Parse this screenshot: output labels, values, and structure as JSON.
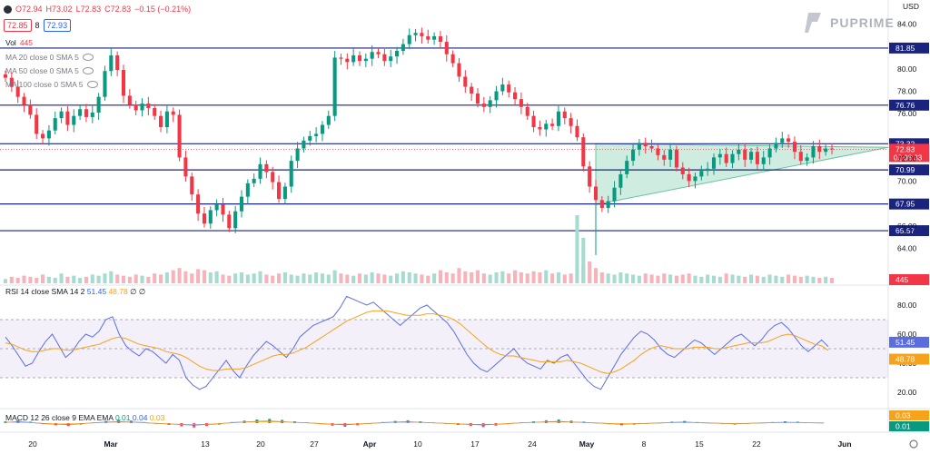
{
  "header": {
    "ohlc": {
      "o": "O72.94",
      "h": "H73.02",
      "l": "L72.83",
      "c": "C72.83",
      "change": "−0.15 (−0.21%)"
    },
    "bid": "72.85",
    "spread": "8",
    "ask": "72.93",
    "volume_label": "Vol",
    "volume_value": "445",
    "indicators": [
      "MA 20 close 0 SMA 5",
      "MA 50 close 0 SMA 5",
      "MA 100 close 0 SMA 5"
    ],
    "currency": "USD",
    "brand": "PUPRIME"
  },
  "rsi_label": {
    "name": "RSI 14 close SMA 14 2",
    "v1": "51.45",
    "v2": "48.78",
    "tail": "∅ ∅"
  },
  "macd_label": {
    "name": "MACD 12 26 close 9 EMA EMA",
    "v1": "0.01",
    "v2": "0.04",
    "v3": "0.03"
  },
  "colors": {
    "up": "#089981",
    "down": "#f23645",
    "level": "#1a237e",
    "rsi": "#5b6ee1",
    "rsi_ma": "#f7a21b",
    "tri": "#a8dcc8"
  },
  "chart_data": [
    {
      "type": "candlestick",
      "title": "",
      "x_tick_labels": [
        "20",
        "Mar",
        "13",
        "20",
        "27",
        "Apr",
        "10",
        "17",
        "24",
        "May",
        "8",
        "15",
        "22",
        "Jun"
      ],
      "y_tick_labels": [
        "84.00",
        "80.00",
        "78.00",
        "76.00",
        "72.00",
        "70.00",
        "66.00",
        "64.00"
      ],
      "ylim": [
        62.5,
        85
      ],
      "levels": [
        81.85,
        76.76,
        73.32,
        70.99,
        67.95,
        65.57
      ],
      "level_labels": [
        "81.85",
        "76.76",
        "73.32",
        "70.99",
        "67.95",
        "65.57"
      ],
      "last_price": "72.83",
      "countdown": "02:06:33",
      "close_path": [
        79.2,
        78.4,
        77.5,
        76.8,
        75.9,
        74.2,
        73.8,
        74.5,
        75.6,
        76.2,
        75.0,
        75.8,
        76.4,
        75.7,
        76.1,
        77.5,
        79.8,
        81.2,
        79.9,
        77.6,
        76.8,
        76.3,
        76.9,
        76.5,
        75.8,
        74.8,
        76.2,
        75.9,
        72.1,
        70.4,
        68.8,
        67.1,
        66.2,
        67.4,
        67.9,
        67.0,
        65.8,
        67.3,
        68.6,
        69.8,
        70.2,
        71.5,
        70.8,
        69.9,
        68.4,
        69.5,
        71.8,
        72.9,
        73.6,
        74.0,
        74.2,
        75.0,
        75.8,
        81.0,
        80.9,
        80.6,
        81.2,
        80.7,
        80.9,
        81.5,
        81.3,
        80.7,
        81.1,
        81.6,
        82.2,
        83.0,
        83.2,
        82.9,
        82.6,
        82.9,
        82.4,
        81.3,
        80.5,
        79.3,
        78.4,
        77.8,
        76.9,
        76.6,
        77.2,
        78.0,
        78.6,
        77.9,
        77.3,
        76.6,
        75.8,
        74.8,
        74.6,
        75.1,
        74.9,
        76.2,
        75.6,
        74.9,
        73.9,
        71.3,
        69.5,
        68.3,
        67.6,
        68.2,
        69.4,
        70.6,
        71.8,
        72.8,
        73.4,
        73.1,
        72.9,
        72.3,
        71.9,
        72.8,
        71.2,
        70.6,
        70.0,
        70.4,
        70.9,
        71.1,
        72.1,
        72.4,
        71.6,
        72.4,
        72.8,
        71.9,
        72.6,
        71.5,
        72.1,
        72.9,
        73.4,
        73.8,
        73.5,
        72.6,
        71.8,
        72.1,
        73.1,
        72.6,
        72.9,
        72.83
      ],
      "volume": [
        4,
        6,
        5,
        7,
        6,
        5,
        8,
        6,
        5,
        9,
        6,
        7,
        5,
        6,
        8,
        7,
        9,
        11,
        8,
        7,
        6,
        8,
        7,
        6,
        9,
        8,
        10,
        12,
        14,
        11,
        9,
        13,
        12,
        10,
        11,
        8,
        7,
        9,
        10,
        8,
        9,
        11,
        8,
        7,
        9,
        10,
        8,
        7,
        9,
        8,
        10,
        9,
        8,
        12,
        9,
        8,
        7,
        9,
        8,
        10,
        9,
        8,
        7,
        9,
        11,
        10,
        9,
        8,
        7,
        9,
        12,
        10,
        9,
        14,
        11,
        10,
        12,
        9,
        8,
        10,
        11,
        9,
        12,
        10,
        9,
        11,
        10,
        12,
        9,
        10,
        8,
        9,
        11,
        16,
        20,
        14,
        10,
        9,
        8,
        10,
        9,
        8,
        7,
        9,
        8,
        7,
        9,
        8,
        7,
        8,
        9,
        7,
        6,
        8,
        7,
        6,
        9,
        8,
        7,
        6,
        8,
        7,
        6,
        8,
        7,
        6,
        8,
        7,
        6,
        7,
        6,
        5,
        6,
        5
      ],
      "triangle": {
        "upper_y": 73.32,
        "x_start_index": 95,
        "apex_y": 73.0,
        "lower_start_y": 67.9
      }
    },
    {
      "type": "line",
      "title": "",
      "y_tick_labels": [
        "80.00",
        "60.00",
        "40.00",
        "20.00"
      ],
      "ylim": [
        10,
        90
      ],
      "band": [
        30,
        70
      ],
      "series": [
        {
          "values": [
            58,
            52,
            45,
            38,
            40,
            48,
            55,
            60,
            52,
            44,
            48,
            55,
            60,
            58,
            62,
            70,
            72,
            60,
            52,
            48,
            45,
            50,
            48,
            44,
            40,
            46,
            42,
            30,
            25,
            22,
            24,
            30,
            36,
            42,
            35,
            30,
            38,
            45,
            50,
            55,
            52,
            48,
            44,
            50,
            58,
            62,
            66,
            68,
            70,
            72,
            78,
            86,
            84,
            82,
            80,
            82,
            78,
            74,
            70,
            66,
            70,
            74,
            78,
            80,
            76,
            72,
            68,
            62,
            54,
            46,
            40,
            36,
            34,
            38,
            42,
            46,
            50,
            44,
            40,
            38,
            36,
            42,
            40,
            44,
            46,
            40,
            34,
            28,
            24,
            22,
            30,
            38,
            46,
            52,
            58,
            62,
            60,
            56,
            50,
            46,
            44,
            48,
            52,
            56,
            54,
            50,
            46,
            50,
            54,
            58,
            60,
            56,
            52,
            56,
            62,
            66,
            68,
            64,
            58,
            52,
            48,
            52,
            56,
            51.45
          ]
        },
        {
          "values": [
            54,
            53,
            51,
            49,
            48,
            48,
            49,
            50,
            50,
            49,
            49,
            50,
            51,
            52,
            53,
            55,
            57,
            58,
            57,
            55,
            53,
            52,
            51,
            50,
            48,
            47,
            46,
            44,
            41,
            38,
            36,
            35,
            35,
            36,
            36,
            36,
            37,
            39,
            41,
            43,
            45,
            46,
            46,
            47,
            49,
            51,
            54,
            57,
            60,
            63,
            66,
            69,
            71,
            73,
            75,
            76,
            76,
            76,
            75,
            74,
            73,
            73,
            73,
            74,
            74,
            73,
            72,
            70,
            67,
            63,
            59,
            55,
            51,
            48,
            46,
            45,
            45,
            44,
            43,
            42,
            41,
            41,
            41,
            41,
            42,
            41,
            40,
            38,
            36,
            34,
            33,
            34,
            36,
            39,
            42,
            46,
            49,
            51,
            52,
            51,
            50,
            50,
            50,
            51,
            51,
            51,
            50,
            50,
            51,
            52,
            53,
            54,
            54,
            54,
            55,
            57,
            59,
            60,
            59,
            57,
            55,
            53,
            52,
            48.78
          ]
        }
      ]
    },
    {
      "type": "bar",
      "title": "",
      "y_tick_labels": [
        "0.03",
        "0.01"
      ],
      "values": [
        0.05,
        0.08,
        0.04,
        -0.03,
        -0.06,
        -0.08,
        -0.04,
        0.02,
        0.06,
        0.09,
        0.07,
        0.03,
        -0.02,
        -0.05,
        -0.09,
        -0.12,
        -0.08,
        -0.04,
        0.03,
        0.07,
        0.1,
        0.12,
        0.09,
        0.05,
        0.02,
        -0.03,
        -0.07,
        -0.1,
        -0.06,
        -0.02,
        0.03,
        0.06,
        0.08,
        0.05,
        0.02,
        -0.02,
        -0.05,
        -0.08,
        -0.11,
        -0.07,
        -0.03,
        0.02,
        0.05,
        0.08,
        0.1,
        0.07,
        0.04,
        0.01,
        -0.03,
        -0.06,
        -0.04,
        -0.02,
        0.01,
        0.04,
        0.06,
        0.03,
        0.01,
        -0.02,
        -0.04,
        -0.02,
        0.01,
        0.03,
        0.05,
        0.04,
        0.02,
        0.01
      ]
    }
  ]
}
